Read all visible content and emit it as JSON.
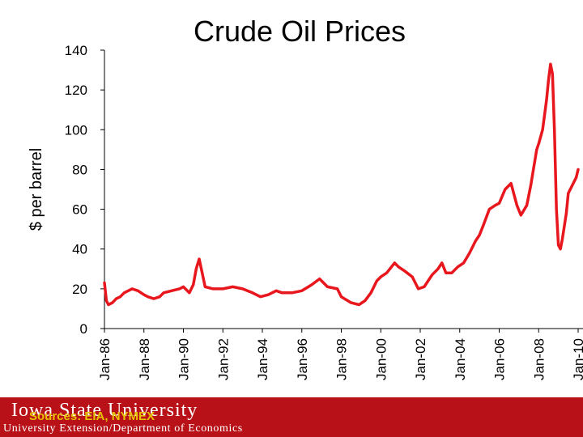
{
  "chart_data": {
    "type": "line",
    "title": "Crude Oil Prices",
    "ylabel": "$ per barrel",
    "xlabel": "",
    "ylim": [
      0,
      140
    ],
    "yticks": [
      0,
      20,
      40,
      60,
      80,
      100,
      120,
      140
    ],
    "x_range": [
      1986.0,
      2010.0
    ],
    "xticks": [
      {
        "year": 1986,
        "label": "Jan-86"
      },
      {
        "year": 1988,
        "label": "Jan-88"
      },
      {
        "year": 1990,
        "label": "Jan-90"
      },
      {
        "year": 1992,
        "label": "Jan-92"
      },
      {
        "year": 1994,
        "label": "Jan-94"
      },
      {
        "year": 1996,
        "label": "Jan-96"
      },
      {
        "year": 1998,
        "label": "Jan-98"
      },
      {
        "year": 2000,
        "label": "Jan-00"
      },
      {
        "year": 2002,
        "label": "Jan-02"
      },
      {
        "year": 2004,
        "label": "Jan-04"
      },
      {
        "year": 2006,
        "label": "Jan-06"
      },
      {
        "year": 2008,
        "label": "Jan-08"
      },
      {
        "year": 2010,
        "label": "Jan-10"
      }
    ],
    "grid": false,
    "series": [
      {
        "color": "#e8161d",
        "x": [
          1986.0,
          1986.1,
          1986.2,
          1986.4,
          1986.6,
          1986.8,
          1987.0,
          1987.4,
          1987.7,
          1988.0,
          1988.2,
          1988.5,
          1988.8,
          1989.0,
          1989.4,
          1989.8,
          1990.0,
          1990.3,
          1990.5,
          1990.65,
          1990.8,
          1990.95,
          1991.1,
          1991.5,
          1992.0,
          1992.5,
          1993.0,
          1993.5,
          1993.9,
          1994.3,
          1994.7,
          1995.0,
          1995.5,
          1996.0,
          1996.5,
          1996.9,
          1997.3,
          1997.8,
          1998.0,
          1998.5,
          1998.9,
          1999.2,
          1999.5,
          1999.8,
          2000.0,
          2000.3,
          2000.7,
          2000.9,
          2001.2,
          2001.6,
          2001.9,
          2002.2,
          2002.6,
          2002.9,
          2003.1,
          2003.3,
          2003.6,
          2003.9,
          2004.2,
          2004.5,
          2004.8,
          2005.0,
          2005.2,
          2005.5,
          2005.8,
          2006.0,
          2006.3,
          2006.6,
          2006.9,
          2007.1,
          2007.4,
          2007.6,
          2007.9,
          2008.0,
          2008.2,
          2008.4,
          2008.5,
          2008.6,
          2008.7,
          2008.8,
          2008.9,
          2009.0,
          2009.1,
          2009.2,
          2009.4,
          2009.5,
          2009.7,
          2009.9,
          2010.0
        ],
        "values": [
          23,
          14,
          12,
          13,
          15,
          16,
          18,
          20,
          19,
          17,
          16,
          15,
          16,
          18,
          19,
          20,
          21,
          18,
          22,
          30,
          35,
          28,
          21,
          20,
          20,
          21,
          20,
          18,
          16,
          17,
          19,
          18,
          18,
          19,
          22,
          25,
          21,
          20,
          16,
          13,
          12,
          14,
          18,
          24,
          26,
          28,
          33,
          31,
          29,
          26,
          20,
          21,
          27,
          30,
          33,
          28,
          28,
          31,
          33,
          38,
          44,
          47,
          52,
          60,
          62,
          63,
          70,
          73,
          62,
          57,
          62,
          72,
          90,
          93,
          100,
          115,
          125,
          133,
          128,
          100,
          60,
          42,
          40,
          45,
          58,
          68,
          72,
          76,
          80
        ]
      }
    ]
  },
  "footer": {
    "university_logo_text": "Iowa State University",
    "sources_note": "Sources: EIA, NYMEX",
    "department_line": "University Extension/Department of Economics"
  },
  "colors": {
    "footer_bg": "#b81118",
    "line": "#e8161d",
    "sources_text": "#e6c200"
  }
}
